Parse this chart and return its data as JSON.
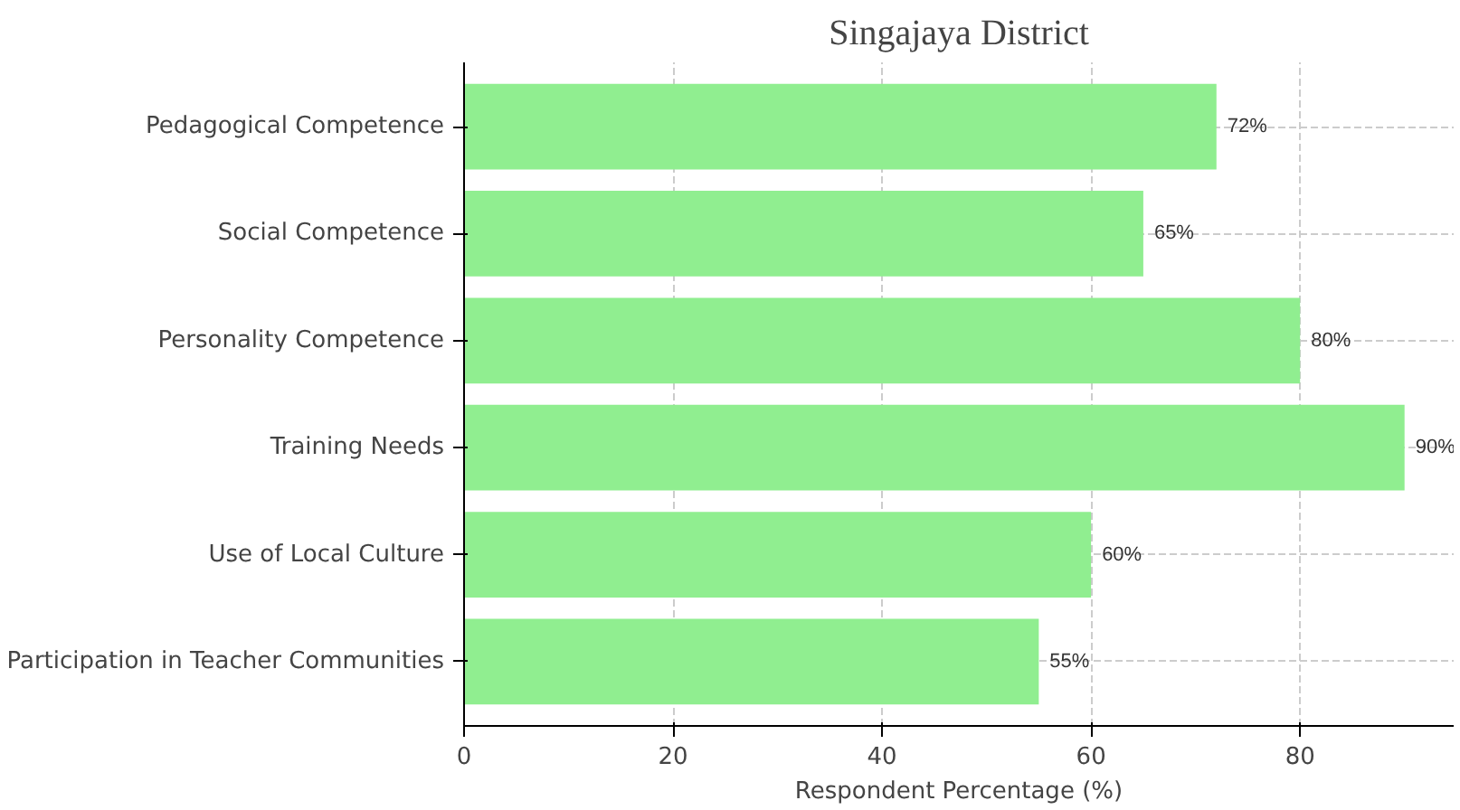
{
  "chart_data": {
    "type": "bar",
    "orientation": "horizontal",
    "title": "Singajaya District",
    "xlabel": "Respondent Percentage (%)",
    "categories": [
      "Pedagogical Competence",
      "Social Competence",
      "Personality Competence",
      "Training Needs",
      "Use of Local Culture",
      "Participation in Teacher Communities"
    ],
    "values": [
      72,
      65,
      80,
      90,
      60,
      55
    ],
    "value_labels": [
      "72%",
      "65%",
      "80%",
      "90%",
      "60%",
      "55%"
    ],
    "color": "#90ee90",
    "xlim": [
      0,
      94.7
    ],
    "xticks": [
      0,
      20,
      40,
      60,
      80
    ],
    "grid": true
  }
}
